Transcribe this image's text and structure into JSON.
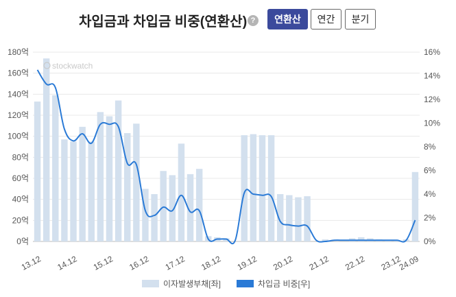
{
  "header": {
    "title": "차입금과 차입금 비중(연환산)",
    "help_label": "?",
    "tabs": [
      {
        "label": "연환산",
        "active": true
      },
      {
        "label": "연간",
        "active": false
      },
      {
        "label": "분기",
        "active": false
      }
    ]
  },
  "watermark": "stockwatch",
  "chart_data": {
    "type": "bar",
    "x_tick_labels": [
      "13.12",
      "14.12",
      "15.12",
      "16.12",
      "17.12",
      "18.12",
      "19.12",
      "20.12",
      "21.12",
      "22.12",
      "23.12",
      "24.09"
    ],
    "y_left_ticks": [
      "0억",
      "20억",
      "40억",
      "60억",
      "80억",
      "100억",
      "120억",
      "140억",
      "160억",
      "180억"
    ],
    "y_right_ticks": [
      "0%",
      "2%",
      "4%",
      "6%",
      "8%",
      "10%",
      "12%",
      "14%",
      "16%"
    ],
    "ylim_left": [
      0,
      180
    ],
    "ylim_right": [
      0,
      16
    ],
    "grid": true,
    "legend_position": "bottom",
    "series": [
      {
        "name": "이자발생부채[좌]",
        "type": "bar",
        "axis": "left",
        "color": "#d3e0ee",
        "values": [
          133,
          174,
          139,
          97,
          95,
          109,
          95,
          123,
          119,
          134,
          103,
          112,
          50,
          45,
          67,
          63,
          93,
          64,
          69,
          5,
          4,
          3,
          0,
          101,
          102,
          101,
          101,
          45,
          44,
          42,
          43,
          0,
          2,
          0,
          0,
          3,
          4,
          3,
          2,
          1,
          1,
          2,
          66
        ]
      },
      {
        "name": "차입금 비중[우]",
        "type": "line",
        "axis": "right",
        "color": "#2a7ad6",
        "values": [
          14.5,
          13.3,
          13.0,
          9.5,
          8.5,
          9.1,
          8.3,
          9.9,
          9.9,
          9.7,
          6.6,
          6.5,
          2.6,
          2.2,
          2.9,
          2.6,
          3.9,
          2.5,
          2.6,
          0.2,
          0.2,
          0.2,
          0.1,
          4.1,
          4.0,
          3.9,
          3.8,
          1.7,
          1.4,
          1.3,
          1.3,
          0.1,
          0.0,
          0.1,
          0.1,
          0.1,
          0.1,
          0.1,
          0.1,
          0.1,
          0.1,
          0.1,
          1.8
        ]
      }
    ]
  }
}
